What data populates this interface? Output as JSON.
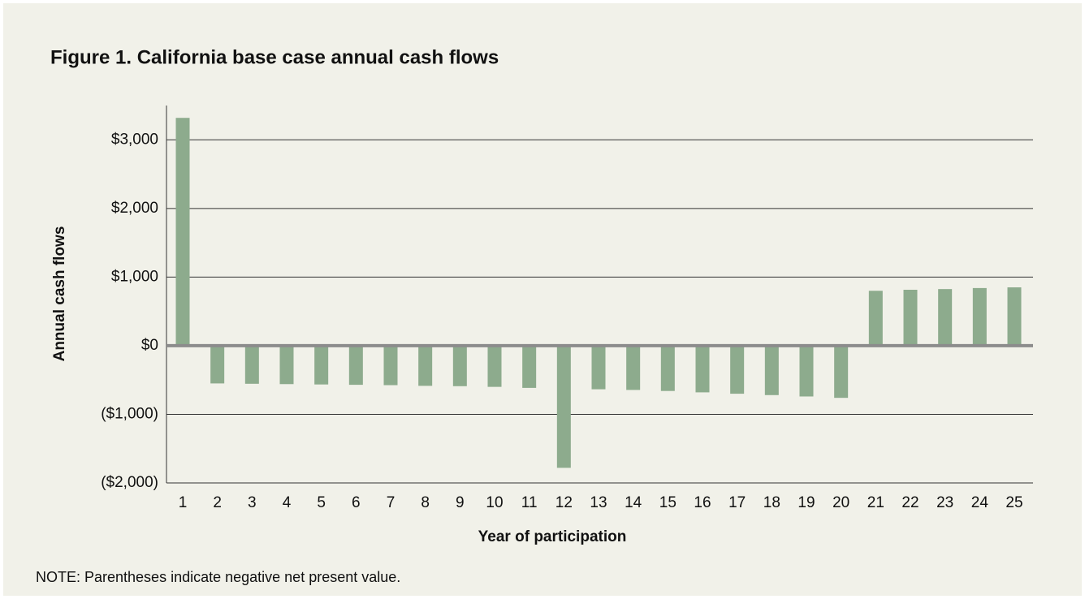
{
  "chart_data": {
    "type": "bar",
    "title": "Figure 1. California base case annual cash flows",
    "y_label": "Annual cash flows",
    "x_label": "Year of participation",
    "note": "NOTE: Parentheses indicate negative net present value.",
    "categories": [
      "1",
      "2",
      "3",
      "4",
      "5",
      "6",
      "7",
      "8",
      "9",
      "10",
      "11",
      "12",
      "13",
      "14",
      "15",
      "16",
      "17",
      "18",
      "19",
      "20",
      "21",
      "22",
      "23",
      "24",
      "25"
    ],
    "values": [
      3320,
      -550,
      -555,
      -560,
      -565,
      -570,
      -575,
      -585,
      -590,
      -600,
      -615,
      -1780,
      -635,
      -645,
      -660,
      -680,
      -700,
      -720,
      -740,
      -760,
      800,
      815,
      825,
      840,
      850
    ],
    "color": "#8dab8d",
    "ylim": [
      -2000,
      3500
    ],
    "yticks": [
      {
        "value": -2000,
        "label": "($2,000)"
      },
      {
        "value": -1000,
        "label": "($1,000)"
      },
      {
        "value": 0,
        "label": "$0"
      },
      {
        "value": 1000,
        "label": "$1,000"
      },
      {
        "value": 2000,
        "label": "$2,000"
      },
      {
        "value": 3000,
        "label": "$3,000"
      }
    ],
    "grid": true
  }
}
